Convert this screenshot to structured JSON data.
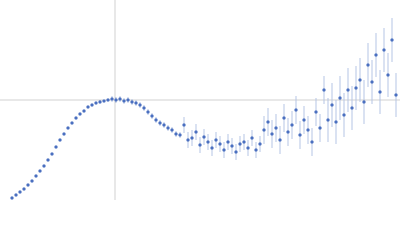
{
  "chart_data": {
    "type": "scatter",
    "x": [
      12,
      16,
      20,
      24,
      28,
      32,
      36,
      40,
      44,
      48,
      52,
      56,
      60,
      64,
      68,
      72,
      76,
      80,
      84,
      88,
      92,
      96,
      100,
      104,
      108,
      112,
      116,
      120,
      124,
      128,
      132,
      136,
      140,
      144,
      148,
      152,
      156,
      160,
      164,
      168,
      172,
      176,
      180,
      184,
      188,
      192,
      196,
      200,
      204,
      208,
      212,
      216,
      220,
      224,
      228,
      232,
      236,
      240,
      244,
      248,
      252,
      256,
      260,
      264,
      268,
      272,
      276,
      280,
      284,
      288,
      292,
      296,
      300,
      304,
      308,
      312,
      316,
      320,
      324,
      328,
      332,
      336,
      340,
      344,
      348,
      352,
      356,
      360,
      364,
      368,
      372,
      376,
      380,
      384,
      388,
      392,
      396
    ],
    "values": [
      2,
      5,
      8,
      11,
      15,
      19,
      24,
      29,
      34,
      40,
      46,
      53,
      60,
      66,
      72,
      77,
      82,
      86,
      89,
      93,
      95,
      97,
      98,
      99,
      100,
      101,
      100,
      101,
      99,
      100,
      98,
      97,
      95,
      92,
      88,
      84,
      80,
      77,
      75,
      72,
      70,
      66,
      65,
      75,
      60,
      62,
      68,
      55,
      63,
      58,
      52,
      60,
      56,
      50,
      58,
      54,
      48,
      56,
      58,
      52,
      62,
      50,
      56,
      70,
      78,
      66,
      72,
      60,
      82,
      68,
      75,
      90,
      65,
      80,
      70,
      58,
      88,
      72,
      110,
      80,
      95,
      78,
      102,
      85,
      110,
      92,
      112,
      120,
      98,
      135,
      118,
      145,
      108,
      150,
      125,
      160,
      105
    ],
    "errors": [
      1,
      1,
      1,
      1,
      1,
      1,
      1,
      1,
      1,
      1,
      1,
      1,
      1,
      1,
      1,
      1,
      1,
      1,
      1,
      1,
      1,
      1,
      1,
      1,
      1,
      3,
      3,
      3,
      3,
      3,
      3,
      3,
      3,
      3,
      3,
      3,
      3,
      3,
      3,
      3,
      3,
      3,
      3,
      8,
      8,
      8,
      8,
      8,
      8,
      8,
      8,
      8,
      8,
      8,
      8,
      8,
      8,
      8,
      8,
      8,
      8,
      8,
      8,
      14,
      14,
      14,
      14,
      14,
      14,
      14,
      14,
      14,
      14,
      14,
      14,
      14,
      14,
      14,
      14,
      22,
      22,
      22,
      22,
      22,
      22,
      22,
      22,
      22,
      22,
      22,
      22,
      22,
      22,
      22,
      22,
      22,
      22
    ],
    "color": "#4a6fc0",
    "error_color": "#b4c4e4",
    "xlim": [
      0,
      400
    ],
    "ylim": [
      0,
      200
    ],
    "crosshair": {
      "x": 115,
      "y": 100
    }
  }
}
